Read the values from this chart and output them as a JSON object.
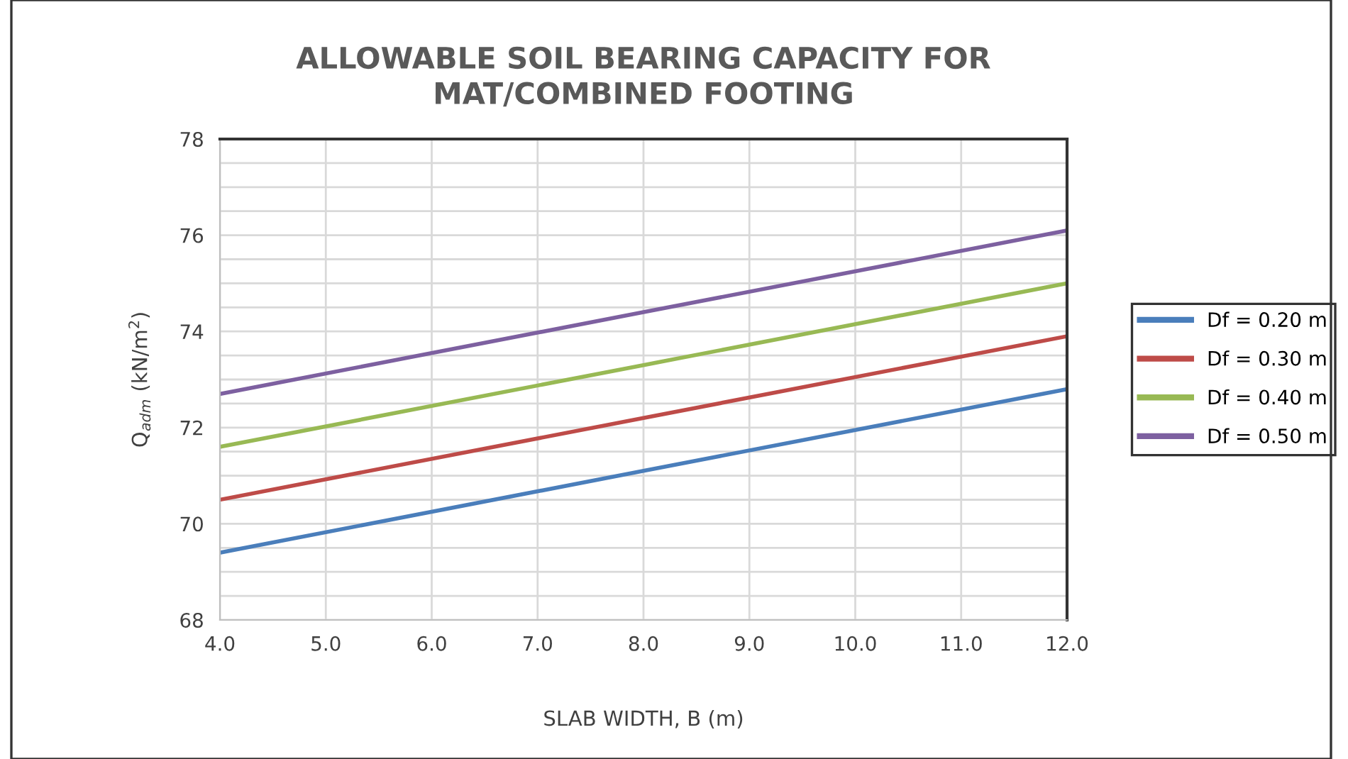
{
  "chart_data": {
    "type": "line",
    "title": "ALLOWABLE SOIL BEARING CAPACITY FOR\nMAT/COMBINED FOOTING",
    "xlabel": "SLAB WIDTH, B (m)",
    "ylabel": "Q$_{adm}$ (kN/m$^{2}$)",
    "x": [
      4,
      8,
      12
    ],
    "series": [
      {
        "name": "Df = 0.20 m",
        "color": "#4a7ebb",
        "values": [
          69.4,
          71.1,
          72.8
        ]
      },
      {
        "name": "Df = 0.30 m",
        "color": "#be4b48",
        "values": [
          70.5,
          72.2,
          73.9
        ]
      },
      {
        "name": "Df = 0.40 m",
        "color": "#98b954",
        "values": [
          71.6,
          73.3,
          75.0
        ]
      },
      {
        "name": "Df = 0.50 m",
        "color": "#7d60a0",
        "values": [
          72.7,
          74.4,
          76.1
        ]
      }
    ],
    "xlim": [
      4,
      12
    ],
    "xticks": [
      {
        "value": 4,
        "label": "4.0"
      },
      {
        "value": 5,
        "label": "5.0"
      },
      {
        "value": 6,
        "label": "6.0"
      },
      {
        "value": 7,
        "label": "7.0"
      },
      {
        "value": 8,
        "label": "8.0"
      },
      {
        "value": 9,
        "label": "9.0"
      },
      {
        "value": 10,
        "label": "10.0"
      },
      {
        "value": 11,
        "label": "11.0"
      },
      {
        "value": 12,
        "label": "12.0"
      }
    ],
    "ylim": [
      68,
      78
    ],
    "yticks": [
      68,
      {
        "value": 68.5,
        "label": null
      },
      {
        "value": 69,
        "label": null
      },
      {
        "value": 69.5,
        "label": null
      },
      70,
      {
        "value": 70.5,
        "label": null
      },
      {
        "value": 71,
        "label": null
      },
      {
        "value": 71.5,
        "label": null
      },
      72,
      {
        "value": 72.5,
        "label": null
      },
      {
        "value": 73,
        "label": null
      },
      {
        "value": 73.5,
        "label": null
      },
      74,
      {
        "value": 74.5,
        "label": null
      },
      {
        "value": 75,
        "label": null
      },
      {
        "value": 75.5,
        "label": null
      },
      76,
      {
        "value": 76.5,
        "label": null
      },
      {
        "value": 77,
        "label": null
      },
      {
        "value": 77.5,
        "label": null
      },
      78
    ],
    "grid": true,
    "legend": "right",
    "marker": "none",
    "line_style": "solid"
  }
}
